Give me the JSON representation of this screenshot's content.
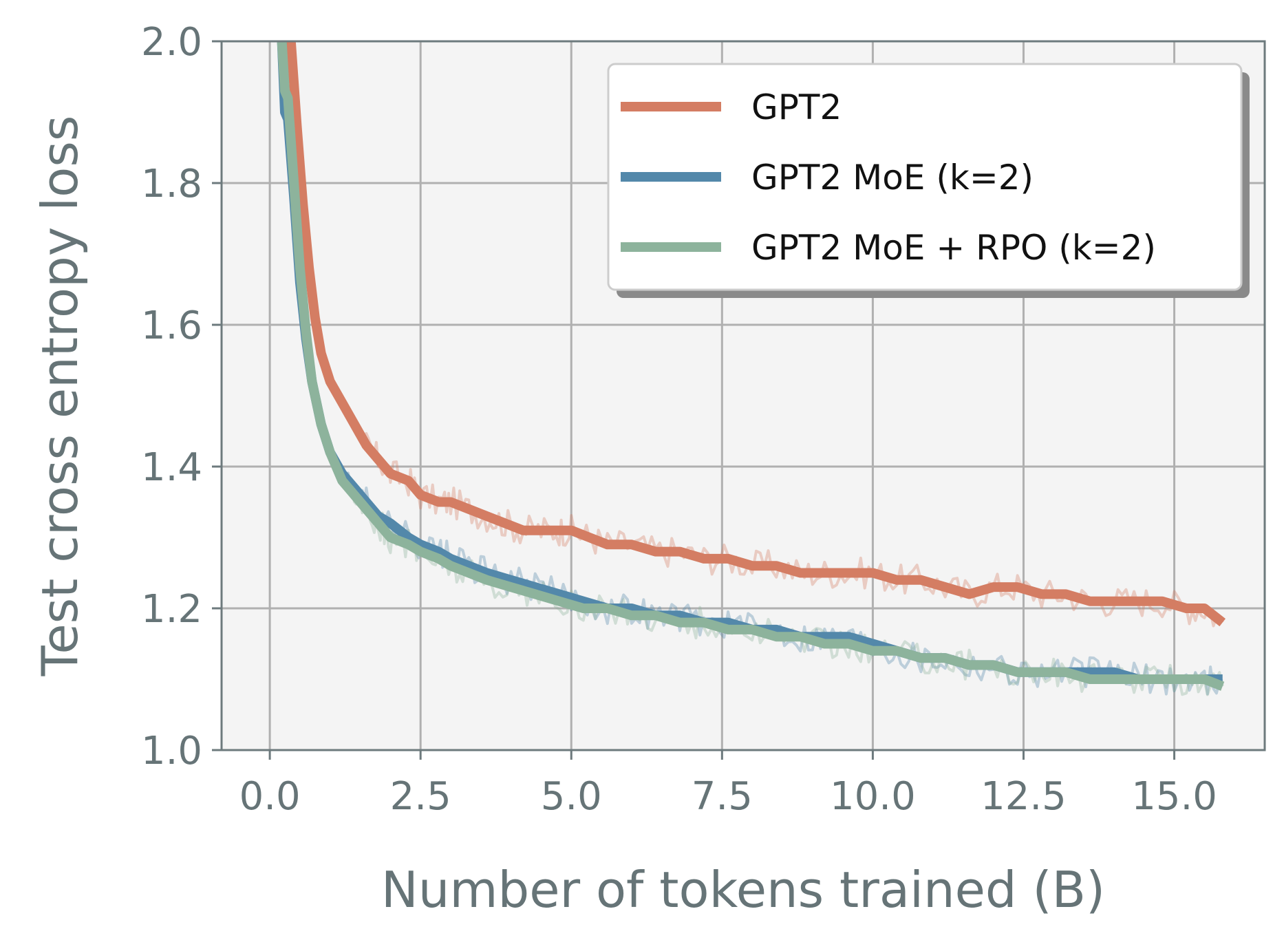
{
  "chart_data": {
    "type": "line",
    "title": "",
    "xlabel": "Number of tokens trained (B)",
    "ylabel": "Test cross entropy loss",
    "xlim": [
      -0.8,
      16.5
    ],
    "ylim": [
      1.0,
      2.0
    ],
    "xticks": [
      0.0,
      2.5,
      5.0,
      7.5,
      10.0,
      12.5,
      15.0
    ],
    "xtick_labels": [
      "0.0",
      "2.5",
      "5.0",
      "7.5",
      "10.0",
      "12.5",
      "15.0"
    ],
    "yticks": [
      1.0,
      1.2,
      1.4,
      1.6,
      1.8,
      2.0
    ],
    "ytick_labels": [
      "1.0",
      "1.2",
      "1.4",
      "1.6",
      "1.8",
      "2.0"
    ],
    "grid": true,
    "legend_position": "top-right",
    "background_color": "#f4f4f4",
    "series": [
      {
        "name": "GPT2",
        "color": "#d47d63",
        "x": [
          0.35,
          0.45,
          0.55,
          0.65,
          0.75,
          0.85,
          1.0,
          1.2,
          1.4,
          1.6,
          1.8,
          2.0,
          2.3,
          2.5,
          2.8,
          3.0,
          3.3,
          3.6,
          3.9,
          4.2,
          4.5,
          4.8,
          5.0,
          5.3,
          5.6,
          6.0,
          6.4,
          6.8,
          7.2,
          7.6,
          8.0,
          8.4,
          8.8,
          9.2,
          9.6,
          10.0,
          10.4,
          10.8,
          11.2,
          11.6,
          12.0,
          12.4,
          12.8,
          13.2,
          13.6,
          14.0,
          14.4,
          14.8,
          15.2,
          15.5,
          15.8
        ],
        "y": [
          2.0,
          1.88,
          1.77,
          1.68,
          1.61,
          1.56,
          1.52,
          1.49,
          1.46,
          1.43,
          1.41,
          1.39,
          1.38,
          1.36,
          1.35,
          1.35,
          1.34,
          1.33,
          1.32,
          1.31,
          1.31,
          1.31,
          1.31,
          1.3,
          1.29,
          1.29,
          1.28,
          1.28,
          1.27,
          1.27,
          1.26,
          1.26,
          1.25,
          1.25,
          1.25,
          1.25,
          1.24,
          1.24,
          1.23,
          1.22,
          1.23,
          1.23,
          1.22,
          1.22,
          1.21,
          1.21,
          1.21,
          1.21,
          1.2,
          1.2,
          1.18
        ]
      },
      {
        "name": "GPT2 MoE (k=2)",
        "color": "#5388aa",
        "x": [
          0.2,
          0.25,
          0.3,
          0.4,
          0.5,
          0.6,
          0.7,
          0.85,
          1.0,
          1.2,
          1.4,
          1.6,
          1.8,
          2.0,
          2.3,
          2.5,
          2.8,
          3.0,
          3.3,
          3.6,
          4.0,
          4.4,
          4.8,
          5.2,
          5.6,
          6.0,
          6.4,
          6.8,
          7.2,
          7.6,
          8.0,
          8.4,
          8.8,
          9.2,
          9.6,
          10.0,
          10.4,
          10.8,
          11.2,
          11.6,
          12.0,
          12.4,
          12.8,
          13.2,
          13.6,
          14.0,
          14.4,
          14.8,
          15.2,
          15.5,
          15.8
        ],
        "y": [
          2.0,
          1.9,
          1.89,
          1.78,
          1.66,
          1.58,
          1.52,
          1.46,
          1.42,
          1.39,
          1.37,
          1.35,
          1.33,
          1.32,
          1.3,
          1.29,
          1.28,
          1.27,
          1.26,
          1.25,
          1.24,
          1.23,
          1.22,
          1.21,
          1.2,
          1.2,
          1.19,
          1.19,
          1.18,
          1.18,
          1.17,
          1.17,
          1.16,
          1.16,
          1.16,
          1.15,
          1.14,
          1.13,
          1.13,
          1.12,
          1.12,
          1.11,
          1.11,
          1.11,
          1.11,
          1.11,
          1.1,
          1.1,
          1.1,
          1.1,
          1.1
        ]
      },
      {
        "name": "GPT2 MoE + RPO (k=2)",
        "color": "#8db39c",
        "x": [
          0.2,
          0.25,
          0.3,
          0.4,
          0.5,
          0.6,
          0.7,
          0.85,
          1.0,
          1.2,
          1.4,
          1.6,
          1.8,
          2.0,
          2.3,
          2.5,
          2.8,
          3.0,
          3.3,
          3.6,
          4.0,
          4.4,
          4.8,
          5.2,
          5.6,
          6.0,
          6.4,
          6.8,
          7.2,
          7.6,
          8.0,
          8.4,
          8.8,
          9.2,
          9.6,
          10.0,
          10.4,
          10.8,
          11.2,
          11.6,
          12.0,
          12.4,
          12.8,
          13.2,
          13.6,
          14.0,
          14.4,
          14.8,
          15.2,
          15.5,
          15.8
        ],
        "y": [
          2.0,
          1.93,
          1.92,
          1.8,
          1.68,
          1.59,
          1.52,
          1.46,
          1.42,
          1.38,
          1.36,
          1.34,
          1.32,
          1.3,
          1.29,
          1.28,
          1.27,
          1.26,
          1.25,
          1.24,
          1.23,
          1.22,
          1.21,
          1.2,
          1.2,
          1.19,
          1.19,
          1.18,
          1.18,
          1.17,
          1.17,
          1.16,
          1.16,
          1.15,
          1.15,
          1.14,
          1.14,
          1.13,
          1.13,
          1.12,
          1.12,
          1.11,
          1.11,
          1.11,
          1.1,
          1.1,
          1.1,
          1.1,
          1.1,
          1.1,
          1.09
        ]
      }
    ]
  }
}
